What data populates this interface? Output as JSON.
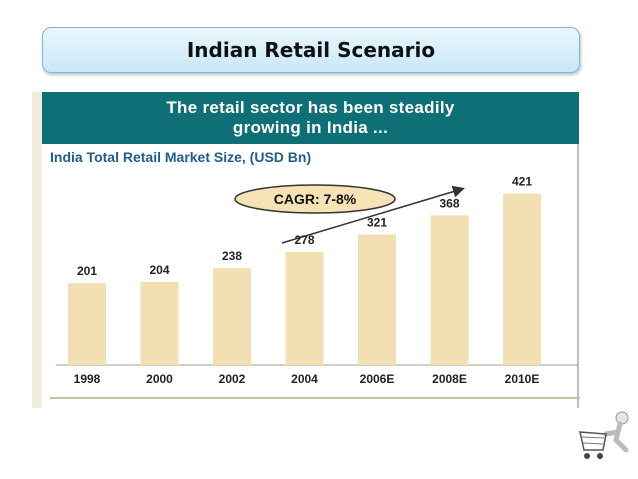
{
  "slide": {
    "title": "Indian Retail Scenario"
  },
  "panel": {
    "banner_line1": "The retail sector has been steadily",
    "banner_line2": "growing in India ...",
    "subtitle": "India Total Retail Market Size, (USD Bn)"
  },
  "chart_data": {
    "type": "bar",
    "title": "India Total Retail Market Size, (USD Bn)",
    "categories": [
      "1998",
      "2000",
      "2002",
      "2004",
      "2006E",
      "2008E",
      "2010E"
    ],
    "values": [
      201,
      204,
      238,
      278,
      321,
      368,
      421
    ],
    "annotation": "CAGR: 7-8%",
    "ylim": [
      0,
      440
    ],
    "bar_color": "#f2dfb4",
    "grid": false
  },
  "colors": {
    "banner_bg": "#0e6f77",
    "subtitle_text": "#1f5d8a",
    "title_box_border": "#7fb6d3"
  },
  "icons": {
    "corner": "shopping-cart-person-icon"
  }
}
